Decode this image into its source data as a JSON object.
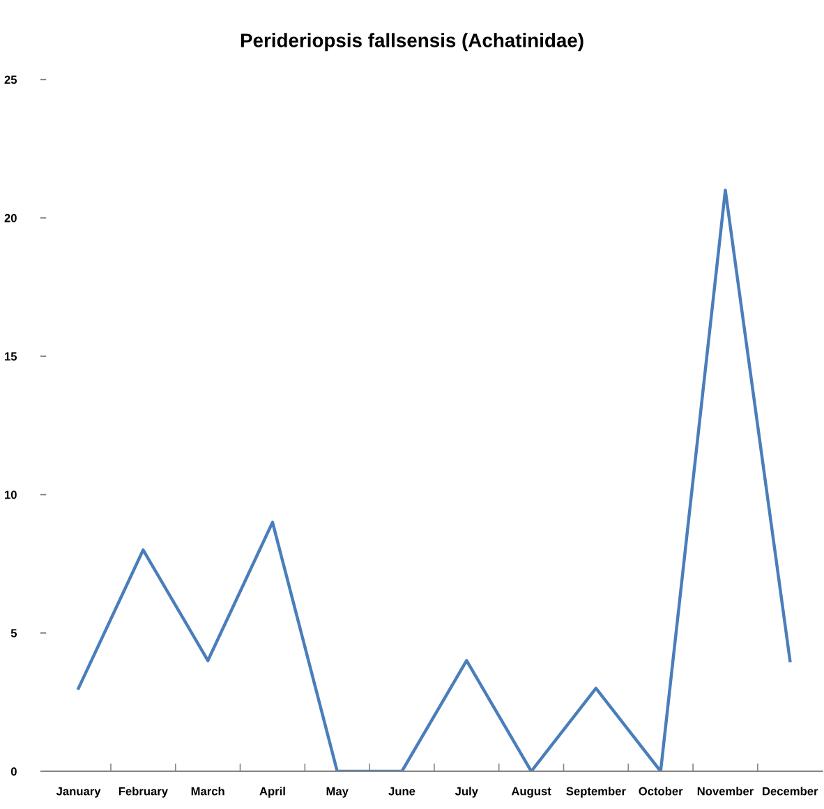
{
  "chart_data": {
    "type": "line",
    "title": "Perideriopsis fallsensis (Achatinidae)",
    "categories": [
      "January",
      "February",
      "March",
      "April",
      "May",
      "June",
      "July",
      "August",
      "September",
      "October",
      "November",
      "December"
    ],
    "series": [
      {
        "color": "#4a7ebb",
        "values": [
          3,
          8,
          4,
          9,
          0,
          0,
          4,
          0,
          3,
          0,
          21,
          4
        ]
      }
    ],
    "ylim": [
      0,
      25
    ],
    "yticks": [
      0,
      5,
      10,
      15,
      20,
      25
    ]
  }
}
